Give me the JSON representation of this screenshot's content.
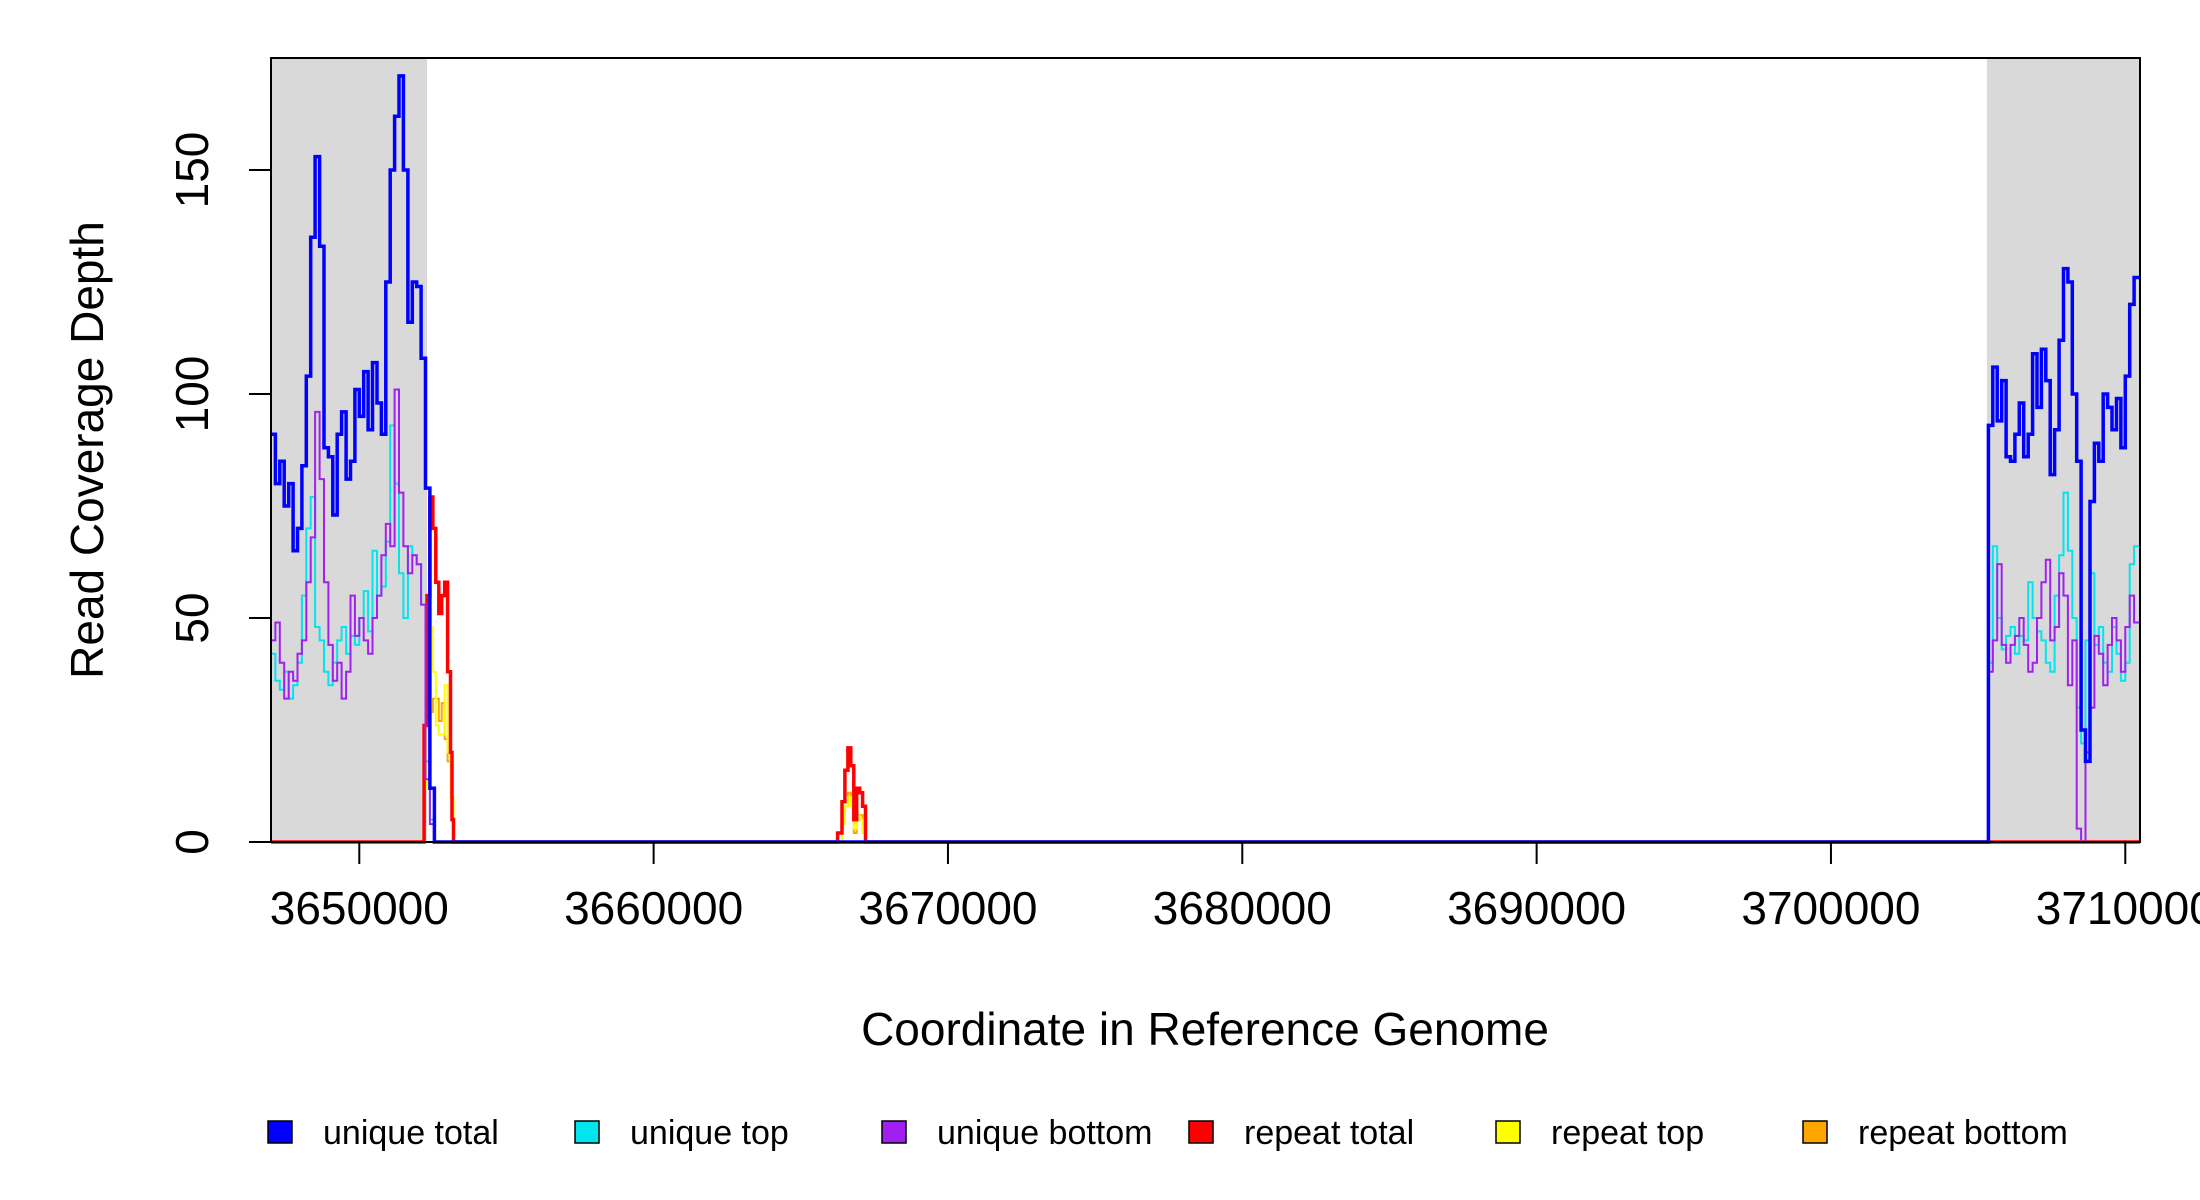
{
  "chart_data": {
    "type": "line",
    "title": "",
    "xlabel": "Coordinate in Reference Genome",
    "ylabel": "Read Coverage Depth",
    "xlim": [
      3647000,
      3710500
    ],
    "ylim": [
      0,
      175
    ],
    "xticks": [
      3650000,
      3660000,
      3670000,
      3680000,
      3690000,
      3700000,
      3710000
    ],
    "yticks": [
      0,
      50,
      100,
      150
    ],
    "shaded_regions": [
      [
        3647000,
        3652300
      ],
      [
        3705300,
        3710500
      ]
    ],
    "shade_color": "#d9d9d9",
    "legend_position": "bottom",
    "series": [
      {
        "name": "unique total",
        "color": "#0000ff",
        "points": [
          [
            3647000,
            91
          ],
          [
            3647150,
            80
          ],
          [
            3647300,
            85
          ],
          [
            3647450,
            75
          ],
          [
            3647600,
            80
          ],
          [
            3647750,
            65
          ],
          [
            3647900,
            70
          ],
          [
            3648050,
            84
          ],
          [
            3648200,
            104
          ],
          [
            3648350,
            135
          ],
          [
            3648500,
            153
          ],
          [
            3648650,
            133
          ],
          [
            3648800,
            88
          ],
          [
            3648950,
            86
          ],
          [
            3649100,
            73
          ],
          [
            3649250,
            91
          ],
          [
            3649400,
            96
          ],
          [
            3649550,
            81
          ],
          [
            3649700,
            85
          ],
          [
            3649850,
            101
          ],
          [
            3650000,
            95
          ],
          [
            3650150,
            105
          ],
          [
            3650300,
            92
          ],
          [
            3650450,
            107
          ],
          [
            3650600,
            98
          ],
          [
            3650750,
            91
          ],
          [
            3650900,
            125
          ],
          [
            3651050,
            150
          ],
          [
            3651200,
            162
          ],
          [
            3651350,
            171
          ],
          [
            3651500,
            150
          ],
          [
            3651650,
            116
          ],
          [
            3651800,
            125
          ],
          [
            3651950,
            124
          ],
          [
            3652100,
            108
          ],
          [
            3652250,
            79
          ],
          [
            3652400,
            12
          ],
          [
            3652550,
            0
          ],
          [
            3666200,
            0
          ],
          [
            3666400,
            0
          ],
          [
            3705300,
            0
          ],
          [
            3705350,
            93
          ],
          [
            3705500,
            106
          ],
          [
            3705650,
            94
          ],
          [
            3705800,
            103
          ],
          [
            3705950,
            86
          ],
          [
            3706100,
            85
          ],
          [
            3706250,
            91
          ],
          [
            3706400,
            98
          ],
          [
            3706550,
            86
          ],
          [
            3706700,
            91
          ],
          [
            3706850,
            109
          ],
          [
            3707000,
            97
          ],
          [
            3707150,
            110
          ],
          [
            3707300,
            103
          ],
          [
            3707450,
            82
          ],
          [
            3707600,
            92
          ],
          [
            3707750,
            112
          ],
          [
            3707900,
            128
          ],
          [
            3708050,
            125
          ],
          [
            3708200,
            100
          ],
          [
            3708350,
            85
          ],
          [
            3708500,
            25
          ],
          [
            3708650,
            18
          ],
          [
            3708800,
            76
          ],
          [
            3708950,
            89
          ],
          [
            3709100,
            85
          ],
          [
            3709250,
            100
          ],
          [
            3709400,
            97
          ],
          [
            3709550,
            92
          ],
          [
            3709700,
            99
          ],
          [
            3709850,
            88
          ],
          [
            3710000,
            104
          ],
          [
            3710150,
            120
          ],
          [
            3710300,
            126
          ]
        ]
      },
      {
        "name": "unique top",
        "color": "#00e5ee",
        "points": [
          [
            3647000,
            42
          ],
          [
            3647150,
            36
          ],
          [
            3647300,
            34
          ],
          [
            3647450,
            38
          ],
          [
            3647600,
            32
          ],
          [
            3647750,
            35
          ],
          [
            3647900,
            40
          ],
          [
            3648050,
            55
          ],
          [
            3648200,
            70
          ],
          [
            3648350,
            77
          ],
          [
            3648500,
            48
          ],
          [
            3648650,
            45
          ],
          [
            3648800,
            38
          ],
          [
            3648950,
            35
          ],
          [
            3649100,
            40
          ],
          [
            3649250,
            45
          ],
          [
            3649400,
            48
          ],
          [
            3649550,
            42
          ],
          [
            3649700,
            46
          ],
          [
            3649850,
            44
          ],
          [
            3650000,
            50
          ],
          [
            3650150,
            56
          ],
          [
            3650300,
            47
          ],
          [
            3650450,
            65
          ],
          [
            3650600,
            55
          ],
          [
            3650750,
            57
          ],
          [
            3650900,
            67
          ],
          [
            3651050,
            93
          ],
          [
            3651200,
            80
          ],
          [
            3651350,
            60
          ],
          [
            3651500,
            50
          ],
          [
            3651650,
            66
          ],
          [
            3651800,
            64
          ],
          [
            3651950,
            62
          ],
          [
            3652100,
            53
          ],
          [
            3652250,
            18
          ],
          [
            3652400,
            5
          ],
          [
            3652550,
            0
          ],
          [
            3705300,
            0
          ],
          [
            3705350,
            40
          ],
          [
            3705500,
            66
          ],
          [
            3705650,
            50
          ],
          [
            3705800,
            43
          ],
          [
            3705950,
            46
          ],
          [
            3706100,
            48
          ],
          [
            3706250,
            42
          ],
          [
            3706400,
            46
          ],
          [
            3706550,
            45
          ],
          [
            3706700,
            58
          ],
          [
            3706850,
            50
          ],
          [
            3707000,
            47
          ],
          [
            3707150,
            45
          ],
          [
            3707300,
            40
          ],
          [
            3707450,
            38
          ],
          [
            3707600,
            55
          ],
          [
            3707750,
            64
          ],
          [
            3707900,
            78
          ],
          [
            3708050,
            65
          ],
          [
            3708200,
            50
          ],
          [
            3708350,
            30
          ],
          [
            3708500,
            22
          ],
          [
            3708650,
            45
          ],
          [
            3708800,
            60
          ],
          [
            3708950,
            44
          ],
          [
            3709100,
            48
          ],
          [
            3709250,
            40
          ],
          [
            3709400,
            38
          ],
          [
            3709550,
            48
          ],
          [
            3709700,
            42
          ],
          [
            3709850,
            36
          ],
          [
            3710000,
            40
          ],
          [
            3710150,
            62
          ],
          [
            3710300,
            66
          ]
        ]
      },
      {
        "name": "unique bottom",
        "color": "#a020f0",
        "points": [
          [
            3647000,
            45
          ],
          [
            3647150,
            49
          ],
          [
            3647300,
            40
          ],
          [
            3647450,
            32
          ],
          [
            3647600,
            38
          ],
          [
            3647750,
            36
          ],
          [
            3647900,
            42
          ],
          [
            3648050,
            45
          ],
          [
            3648200,
            58
          ],
          [
            3648350,
            68
          ],
          [
            3648500,
            96
          ],
          [
            3648650,
            81
          ],
          [
            3648800,
            58
          ],
          [
            3648950,
            44
          ],
          [
            3649100,
            36
          ],
          [
            3649250,
            40
          ],
          [
            3649400,
            32
          ],
          [
            3649550,
            38
          ],
          [
            3649700,
            55
          ],
          [
            3649850,
            46
          ],
          [
            3650000,
            50
          ],
          [
            3650150,
            45
          ],
          [
            3650300,
            42
          ],
          [
            3650450,
            50
          ],
          [
            3650600,
            55
          ],
          [
            3650750,
            64
          ],
          [
            3650900,
            71
          ],
          [
            3651050,
            66
          ],
          [
            3651200,
            101
          ],
          [
            3651350,
            78
          ],
          [
            3651500,
            66
          ],
          [
            3651650,
            60
          ],
          [
            3651800,
            64
          ],
          [
            3651950,
            62
          ],
          [
            3652100,
            53
          ],
          [
            3652250,
            14
          ],
          [
            3652400,
            4
          ],
          [
            3652550,
            0
          ],
          [
            3705300,
            0
          ],
          [
            3705350,
            38
          ],
          [
            3705500,
            45
          ],
          [
            3705650,
            62
          ],
          [
            3705800,
            44
          ],
          [
            3705950,
            40
          ],
          [
            3706100,
            44
          ],
          [
            3706250,
            46
          ],
          [
            3706400,
            50
          ],
          [
            3706550,
            44
          ],
          [
            3706700,
            38
          ],
          [
            3706850,
            40
          ],
          [
            3707000,
            50
          ],
          [
            3707150,
            58
          ],
          [
            3707300,
            63
          ],
          [
            3707450,
            45
          ],
          [
            3707600,
            48
          ],
          [
            3707750,
            60
          ],
          [
            3707900,
            55
          ],
          [
            3708050,
            35
          ],
          [
            3708200,
            45
          ],
          [
            3708350,
            3
          ],
          [
            3708500,
            0
          ],
          [
            3708650,
            20
          ],
          [
            3708800,
            30
          ],
          [
            3708950,
            46
          ],
          [
            3709100,
            42
          ],
          [
            3709250,
            35
          ],
          [
            3709400,
            44
          ],
          [
            3709550,
            50
          ],
          [
            3709700,
            45
          ],
          [
            3709850,
            38
          ],
          [
            3710000,
            48
          ],
          [
            3710150,
            55
          ],
          [
            3710300,
            49
          ]
        ]
      },
      {
        "name": "repeat total",
        "color": "#ff0000",
        "points": [
          [
            3647000,
            0
          ],
          [
            3652100,
            0
          ],
          [
            3652200,
            26
          ],
          [
            3652300,
            55
          ],
          [
            3652400,
            77
          ],
          [
            3652500,
            70
          ],
          [
            3652600,
            58
          ],
          [
            3652700,
            51
          ],
          [
            3652800,
            55
          ],
          [
            3652900,
            58
          ],
          [
            3653000,
            38
          ],
          [
            3653100,
            20
          ],
          [
            3653150,
            5
          ],
          [
            3653200,
            0
          ],
          [
            3666100,
            0
          ],
          [
            3666250,
            2
          ],
          [
            3666400,
            9
          ],
          [
            3666500,
            16
          ],
          [
            3666600,
            21
          ],
          [
            3666700,
            17
          ],
          [
            3666800,
            5
          ],
          [
            3666900,
            12
          ],
          [
            3667000,
            11
          ],
          [
            3667100,
            8
          ],
          [
            3667200,
            0
          ],
          [
            3710500,
            0
          ]
        ]
      },
      {
        "name": "repeat top",
        "color": "#ffff00",
        "points": [
          [
            3647000,
            0
          ],
          [
            3652100,
            0
          ],
          [
            3652200,
            12
          ],
          [
            3652300,
            30
          ],
          [
            3652400,
            48
          ],
          [
            3652500,
            38
          ],
          [
            3652600,
            26
          ],
          [
            3652700,
            24
          ],
          [
            3652800,
            24
          ],
          [
            3652900,
            35
          ],
          [
            3653000,
            20
          ],
          [
            3653100,
            10
          ],
          [
            3653200,
            0
          ],
          [
            3666250,
            0
          ],
          [
            3666400,
            4
          ],
          [
            3666500,
            8
          ],
          [
            3666600,
            10
          ],
          [
            3666700,
            8
          ],
          [
            3666800,
            3
          ],
          [
            3666900,
            6
          ],
          [
            3667000,
            5
          ],
          [
            3667100,
            2
          ],
          [
            3667200,
            0
          ],
          [
            3710500,
            0
          ]
        ]
      },
      {
        "name": "repeat bottom",
        "color": "#ffa500",
        "points": [
          [
            3647000,
            0
          ],
          [
            3652100,
            0
          ],
          [
            3652200,
            14
          ],
          [
            3652300,
            25
          ],
          [
            3652400,
            29
          ],
          [
            3652500,
            32
          ],
          [
            3652600,
            32
          ],
          [
            3652700,
            27
          ],
          [
            3652800,
            31
          ],
          [
            3652900,
            23
          ],
          [
            3653000,
            18
          ],
          [
            3653100,
            10
          ],
          [
            3653200,
            0
          ],
          [
            3666250,
            0
          ],
          [
            3666400,
            5
          ],
          [
            3666500,
            8
          ],
          [
            3666600,
            11
          ],
          [
            3666700,
            9
          ],
          [
            3666800,
            2
          ],
          [
            3666900,
            6
          ],
          [
            3667000,
            6
          ],
          [
            3667100,
            4
          ],
          [
            3667200,
            0
          ],
          [
            3710500,
            0
          ]
        ]
      }
    ]
  }
}
